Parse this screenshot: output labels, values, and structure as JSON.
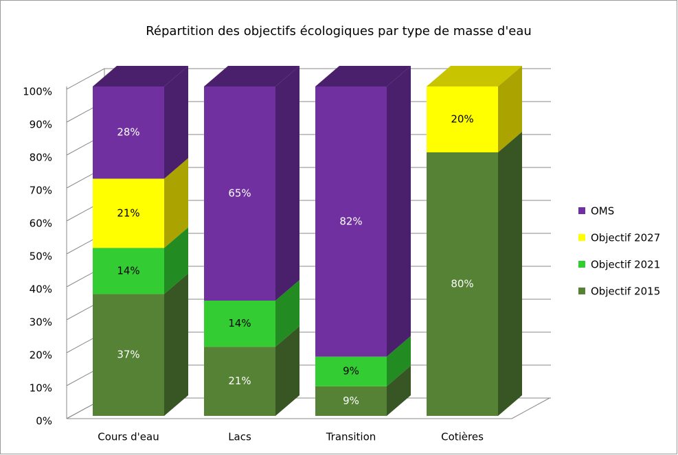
{
  "chart_data": {
    "type": "bar3d_stacked",
    "title": "Répartition  des objectifs  écologiques par type de masse d'eau",
    "categories": [
      "Cours d'eau",
      "Lacs",
      "Transition",
      "Cotières"
    ],
    "series": [
      {
        "name": "Objectif 2015",
        "color": "#558235",
        "side_color": "#375623",
        "label_color": "#ffffff",
        "values": [
          37,
          21,
          9,
          80
        ],
        "value_labels": [
          "37%",
          "21%",
          "9%",
          "80%"
        ]
      },
      {
        "name": "Objectif 2021",
        "color": "#33cc33",
        "side_color": "#228b22",
        "label_color": "#000000",
        "values": [
          14,
          14,
          9,
          0
        ],
        "value_labels": [
          "14%",
          "14%",
          "9%",
          null
        ]
      },
      {
        "name": "Objectif 2027",
        "color": "#ffff00",
        "side_color": "#aaa300",
        "label_color": "#000000",
        "values": [
          21,
          0,
          0,
          20
        ],
        "value_labels": [
          "21%",
          null,
          null,
          "20%"
        ]
      },
      {
        "name": "OMS",
        "color": "#7030a0",
        "side_color": "#4a1f6b",
        "label_color": "#ffffff",
        "values": [
          28,
          65,
          82,
          0
        ],
        "value_labels": [
          "28%",
          "65%",
          "82%",
          null
        ]
      }
    ],
    "ylim": [
      0,
      100
    ],
    "yticks": [
      {
        "value": 0,
        "label": "0%"
      },
      {
        "value": 10,
        "label": "10%"
      },
      {
        "value": 20,
        "label": "20%"
      },
      {
        "value": 30,
        "label": "30%"
      },
      {
        "value": 40,
        "label": "40%"
      },
      {
        "value": 50,
        "label": "50%"
      },
      {
        "value": 60,
        "label": "60%"
      },
      {
        "value": 70,
        "label": "70%"
      },
      {
        "value": 80,
        "label": "80%"
      },
      {
        "value": 90,
        "label": "90%"
      },
      {
        "value": 100,
        "label": "100%"
      }
    ],
    "grid": true,
    "legend": "right"
  }
}
